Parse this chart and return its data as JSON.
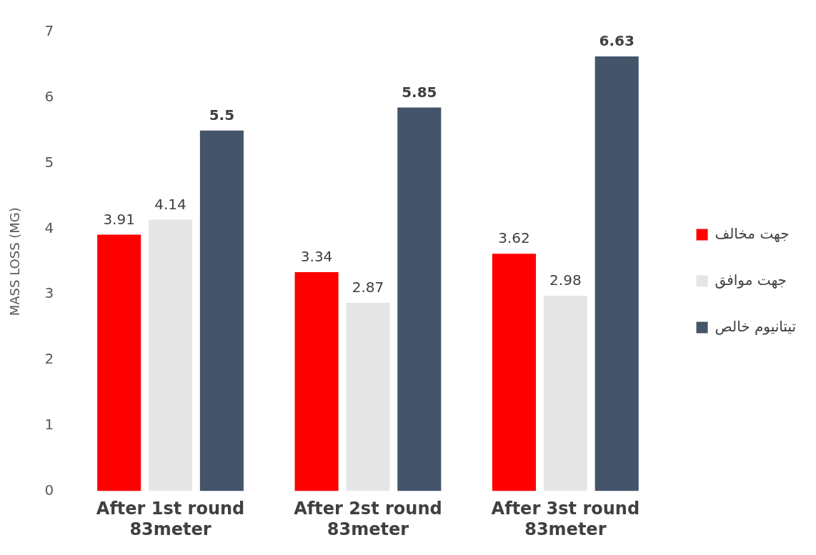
{
  "chart_data": {
    "type": "bar",
    "categories": [
      "After 1st round\n83meter",
      "After 2st round\n83meter",
      "After 3st round\n83meter"
    ],
    "series": [
      {
        "name": "جهت مخالف",
        "color": "#ff0000",
        "values": [
          3.91,
          3.34,
          3.62
        ]
      },
      {
        "name": "جهت موافق",
        "color": "#e7e6e6",
        "values": [
          4.14,
          2.87,
          2.98
        ]
      },
      {
        "name": "تیتانیوم خالص",
        "color": "#44546a",
        "values": [
          5.5,
          5.85,
          6.63
        ]
      }
    ],
    "ylabel": "MASS LOSS (MG)",
    "ylim": [
      0,
      7
    ],
    "yticks": [
      0,
      1,
      2,
      3,
      4,
      5,
      6,
      7
    ],
    "grid": false,
    "legend": "right",
    "data_labels": true
  }
}
